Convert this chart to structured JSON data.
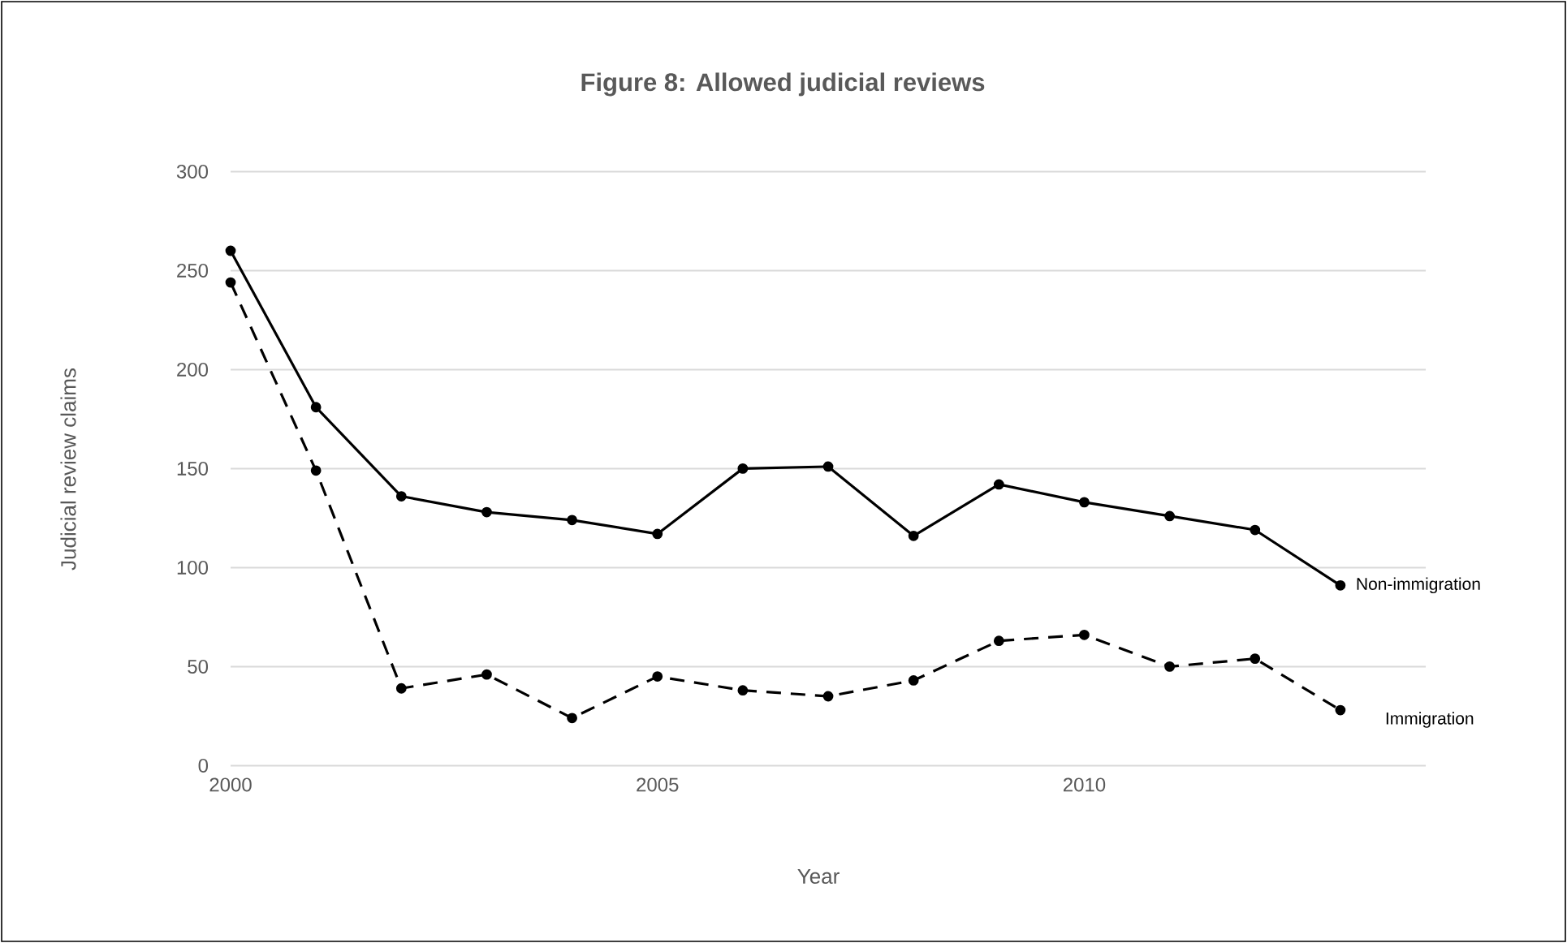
{
  "chart_data": {
    "type": "line",
    "title": "Figure 8: Allowed judicial reviews",
    "xlabel": "Year",
    "ylabel": "Judicial review claims",
    "x": [
      2000,
      2001,
      2002,
      2003,
      2004,
      2005,
      2006,
      2007,
      2008,
      2009,
      2010,
      2011,
      2012,
      2013
    ],
    "xlim": [
      2000,
      2014
    ],
    "xticks": [
      2000,
      2005,
      2010
    ],
    "ylim": [
      0,
      300
    ],
    "yticks": [
      0,
      50,
      100,
      150,
      200,
      250,
      300
    ],
    "grid": "y",
    "marker": "circle",
    "series": [
      {
        "name": "Non-immigration",
        "color": "#000000",
        "line_style": "solid",
        "values": [
          260,
          181,
          136,
          128,
          124,
          117,
          150,
          151,
          116,
          142,
          133,
          126,
          119,
          91
        ]
      },
      {
        "name": "Immigration",
        "color": "#000000",
        "line_style": "dashed",
        "values": [
          244,
          149,
          39,
          46,
          24,
          45,
          38,
          35,
          43,
          63,
          66,
          50,
          54,
          28
        ]
      }
    ]
  }
}
